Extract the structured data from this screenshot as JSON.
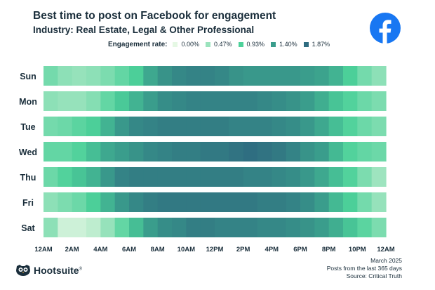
{
  "header": {
    "title": "Best time to post on Facebook for engagement",
    "subtitle": "Industry: Real Estate, Legal & Other Professional",
    "logo_icon": "facebook-logo-icon"
  },
  "legend": {
    "label": "Engagement rate:",
    "items": [
      {
        "label": "0.00%",
        "color": "#e5f8e4"
      },
      {
        "label": "0.47%",
        "color": "#9be3bd"
      },
      {
        "label": "0.93%",
        "color": "#4dd19a"
      },
      {
        "label": "1.40%",
        "color": "#3a9d8c"
      },
      {
        "label": "1.87%",
        "color": "#2f6c80"
      }
    ]
  },
  "chart_data": {
    "type": "heatmap",
    "title": "Best time to post on Facebook for engagement",
    "subtitle": "Industry: Real Estate, Legal & Other Professional",
    "rows": [
      "Sun",
      "Mon",
      "Tue",
      "Wed",
      "Thu",
      "Fri",
      "Sat"
    ],
    "columns_hours": [
      "12AM",
      "1AM",
      "2AM",
      "3AM",
      "4AM",
      "5AM",
      "6AM",
      "7AM",
      "8AM",
      "9AM",
      "10AM",
      "11AM",
      "12PM",
      "1PM",
      "2PM",
      "3PM",
      "4PM",
      "5PM",
      "6PM",
      "7PM",
      "8PM",
      "9PM",
      "10PM",
      "11PM"
    ],
    "x_tick_labels": [
      "12AM",
      "2AM",
      "4AM",
      "6AM",
      "8AM",
      "10AM",
      "12PM",
      "2PM",
      "4PM",
      "6PM",
      "8PM",
      "10PM",
      "12AM"
    ],
    "value_unit": "%",
    "color_scale": [
      0.0,
      0.47,
      0.93,
      1.4,
      1.87
    ],
    "values": [
      [
        0.7,
        0.55,
        0.5,
        0.55,
        0.65,
        0.8,
        0.95,
        1.3,
        1.5,
        1.6,
        1.65,
        1.65,
        1.6,
        1.5,
        1.45,
        1.45,
        1.45,
        1.45,
        1.4,
        1.35,
        1.2,
        0.95,
        0.7,
        0.55
      ],
      [
        0.55,
        0.5,
        0.5,
        0.6,
        0.8,
        1.0,
        1.2,
        1.4,
        1.55,
        1.6,
        1.65,
        1.65,
        1.65,
        1.65,
        1.65,
        1.6,
        1.55,
        1.5,
        1.4,
        1.25,
        1.05,
        0.9,
        0.75,
        0.65
      ],
      [
        0.7,
        0.75,
        0.85,
        0.95,
        1.2,
        1.45,
        1.6,
        1.65,
        1.7,
        1.7,
        1.7,
        1.7,
        1.7,
        1.65,
        1.65,
        1.65,
        1.6,
        1.55,
        1.45,
        1.3,
        1.1,
        0.9,
        0.75,
        0.65
      ],
      [
        0.8,
        0.8,
        0.9,
        1.1,
        1.3,
        1.4,
        1.5,
        1.6,
        1.65,
        1.7,
        1.7,
        1.75,
        1.75,
        1.8,
        1.85,
        1.8,
        1.75,
        1.65,
        1.5,
        1.4,
        1.15,
        0.9,
        0.8,
        0.75
      ],
      [
        0.75,
        0.9,
        1.05,
        1.2,
        1.45,
        1.65,
        1.7,
        1.7,
        1.7,
        1.7,
        1.7,
        1.7,
        1.7,
        1.7,
        1.65,
        1.65,
        1.6,
        1.55,
        1.45,
        1.3,
        1.1,
        0.9,
        0.65,
        0.45
      ],
      [
        0.55,
        0.65,
        0.75,
        0.95,
        1.2,
        1.45,
        1.6,
        1.7,
        1.75,
        1.75,
        1.75,
        1.75,
        1.75,
        1.75,
        1.75,
        1.7,
        1.7,
        1.65,
        1.55,
        1.4,
        1.15,
        0.95,
        0.7,
        0.5
      ],
      [
        0.55,
        0.15,
        0.15,
        0.25,
        0.5,
        0.8,
        1.1,
        1.4,
        1.55,
        1.6,
        1.7,
        1.7,
        1.65,
        1.65,
        1.65,
        1.6,
        1.6,
        1.55,
        1.5,
        1.4,
        1.25,
        1.05,
        0.85,
        0.65
      ]
    ]
  },
  "footer": {
    "brand": "Hootsuite",
    "trademark": "®",
    "owl_icon": "hootsuite-owl-icon",
    "notes": [
      "March 2025",
      "Posts from the last 365 days",
      "Source: Critical Truth"
    ]
  }
}
